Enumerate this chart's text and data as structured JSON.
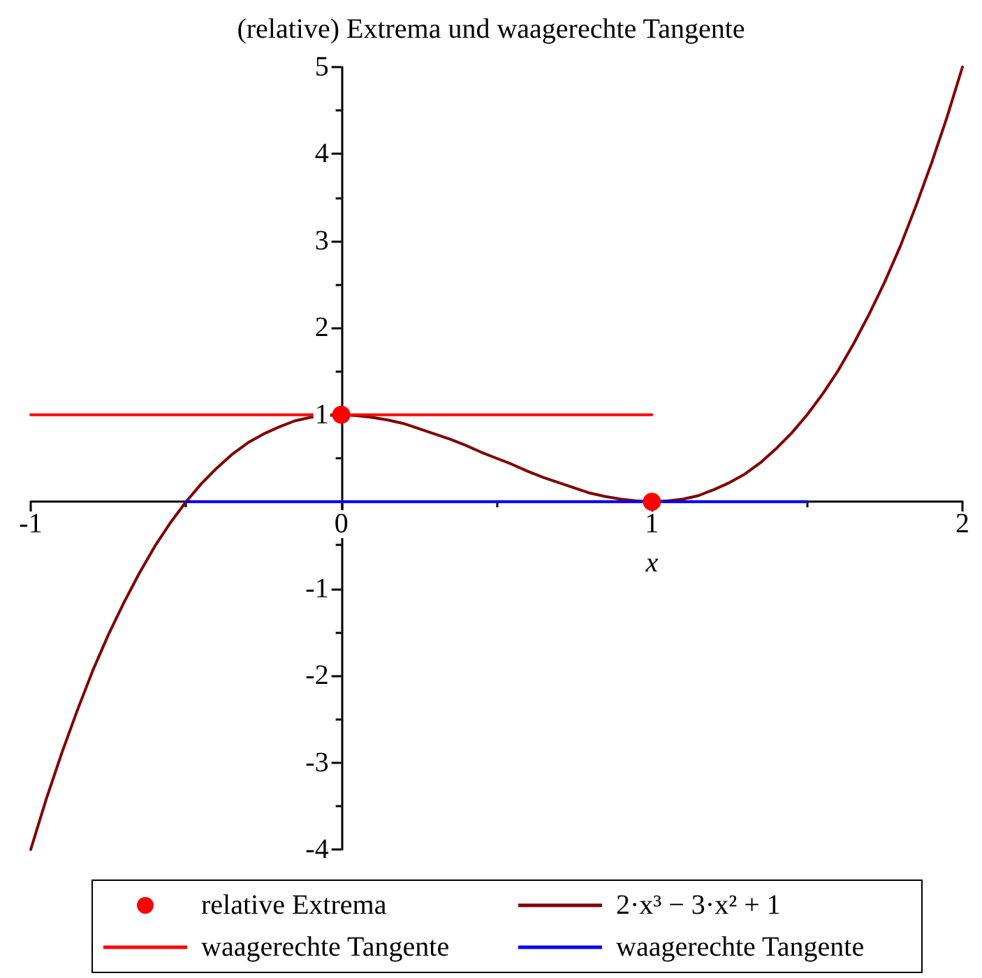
{
  "chart_data": {
    "type": "line",
    "title": "(relative) Extrema und waagerechte Tangente",
    "xlabel": "x",
    "xlim": [
      -1,
      2
    ],
    "xticks": [
      -1,
      {
        "value": -0.5,
        "label": null
      },
      0,
      {
        "value": 0.5,
        "label": null
      },
      1,
      {
        "value": 1.5,
        "label": null
      },
      2
    ],
    "ylim": [
      -4,
      5
    ],
    "yticks": [
      -4,
      {
        "value": -3.5,
        "label": null
      },
      -3,
      {
        "value": -2.5,
        "label": null
      },
      -2,
      {
        "value": -1.5,
        "label": null
      },
      -1,
      {
        "value": -0.5,
        "label": null
      },
      {
        "value": 0.5,
        "label": null
      },
      1,
      {
        "value": 1.5,
        "label": null
      },
      2,
      {
        "value": 2.5,
        "label": null
      },
      3,
      {
        "value": 3.5,
        "label": null
      },
      4,
      {
        "value": 4.5,
        "label": null
      },
      5
    ],
    "grid": false,
    "legend": "bottom",
    "line_style": "solid",
    "series": [
      {
        "name": "relative Extrema",
        "type": "scatter",
        "marker": "circle",
        "color": "#ff0000",
        "x": [
          0,
          1
        ],
        "values": [
          1,
          0
        ]
      },
      {
        "name": "2·x³ − 3·x² + 1",
        "type": "line",
        "color": "#800000",
        "x": [
          -1,
          -0.95,
          -0.9,
          -0.85,
          -0.8,
          -0.75,
          -0.7,
          -0.65,
          -0.6,
          -0.55,
          -0.5,
          -0.45,
          -0.4,
          -0.35,
          -0.3,
          -0.25,
          -0.2,
          -0.15,
          -0.1,
          -0.05,
          0,
          0.05,
          0.1,
          0.15,
          0.2,
          0.25,
          0.3,
          0.35,
          0.4,
          0.45,
          0.5,
          0.55,
          0.6,
          0.65,
          0.7,
          0.75,
          0.8,
          0.85,
          0.9,
          0.95,
          1,
          1.05,
          1.1,
          1.15,
          1.2,
          1.25,
          1.3,
          1.35,
          1.4,
          1.45,
          1.5,
          1.55,
          1.6,
          1.65,
          1.7,
          1.75,
          1.8,
          1.85,
          1.9,
          1.95,
          2
        ],
        "values": [
          -4,
          -3.42,
          -2.89,
          -2.4,
          -1.94,
          -1.53,
          -1.16,
          -0.82,
          -0.51,
          -0.24,
          0,
          0.21,
          0.39,
          0.55,
          0.68,
          0.78,
          0.86,
          0.93,
          0.97,
          0.99,
          1,
          0.99,
          0.97,
          0.94,
          0.9,
          0.84,
          0.78,
          0.72,
          0.65,
          0.57,
          0.5,
          0.43,
          0.35,
          0.28,
          0.22,
          0.16,
          0.1,
          0.06,
          0.03,
          0.01,
          0,
          0.01,
          0.03,
          0.07,
          0.14,
          0.22,
          0.32,
          0.45,
          0.61,
          0.79,
          1,
          1.24,
          1.51,
          1.82,
          2.16,
          2.53,
          2.94,
          3.4,
          3.89,
          4.42,
          5
        ]
      },
      {
        "name": "waagerechte Tangente",
        "type": "line",
        "color": "#ff0000",
        "x": [
          -1,
          1
        ],
        "values": [
          1,
          1
        ]
      },
      {
        "name": "waagerechte Tangente",
        "type": "line",
        "color": "#0000ff",
        "x": [
          -0.5,
          1.5
        ],
        "values": [
          0,
          0
        ]
      }
    ]
  }
}
